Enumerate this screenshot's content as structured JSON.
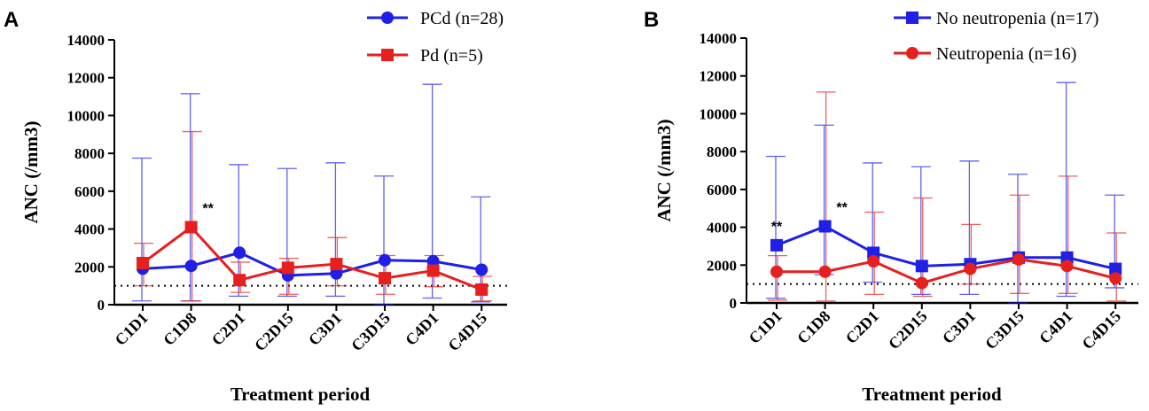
{
  "chart_data": [
    {
      "panel_label": "A",
      "type": "line",
      "xlabel": "Treatment period",
      "ylabel": "ANC (/mm3)",
      "ylim": [
        0,
        14000
      ],
      "yticks": [
        0,
        2000,
        4000,
        6000,
        8000,
        10000,
        12000,
        14000
      ],
      "categories": [
        "C1D1",
        "C1D8",
        "C2D1",
        "C2D15",
        "C3D1",
        "C3D15",
        "C4D1",
        "C4D15"
      ],
      "reference_line": 1000,
      "legend_position": "top-right",
      "series": [
        {
          "name": "PCd (n=28)",
          "color": "#1f1fe6",
          "marker": "circle",
          "values": [
            1900,
            2050,
            2750,
            1550,
            1650,
            2350,
            2300,
            1850
          ],
          "error_high": [
            7750,
            11150,
            7400,
            7200,
            7500,
            6800,
            11650,
            5700
          ],
          "error_low": [
            200,
            200,
            450,
            450,
            450,
            0,
            350,
            150
          ]
        },
        {
          "name": "Pd (n=5)",
          "color": "#e61f1f",
          "marker": "square",
          "values": [
            2200,
            4100,
            1300,
            1950,
            2150,
            1400,
            1800,
            800
          ],
          "error_high": [
            3250,
            9150,
            2250,
            2450,
            3550,
            2600,
            2600,
            1500
          ],
          "error_low": [
            1000,
            200,
            650,
            550,
            1000,
            550,
            950,
            200
          ]
        }
      ],
      "annotations": [
        {
          "text": "**",
          "category": "C1D8"
        }
      ]
    },
    {
      "panel_label": "B",
      "type": "line",
      "xlabel": "Treatment period",
      "ylabel": "ANC (/mm3)",
      "ylim": [
        0,
        14000
      ],
      "yticks": [
        0,
        2000,
        4000,
        6000,
        8000,
        10000,
        12000,
        14000
      ],
      "categories": [
        "C1D1",
        "C1D8",
        "C2D1",
        "C2D15",
        "C3D1",
        "C3D15",
        "C4D1",
        "C4D15"
      ],
      "reference_line": 1000,
      "legend_position": "top-right",
      "series": [
        {
          "name": "No neutropenia (n=17)",
          "color": "#1f1fe6",
          "marker": "square",
          "values": [
            3050,
            4050,
            2650,
            1950,
            2050,
            2400,
            2400,
            1800
          ],
          "error_high": [
            7750,
            9400,
            7400,
            7200,
            7500,
            6800,
            11650,
            5700
          ],
          "error_low": [
            250,
            1500,
            1100,
            450,
            450,
            0,
            350,
            800
          ]
        },
        {
          "name": "Neutropenia (n=16)",
          "color": "#e61f1f",
          "marker": "circle",
          "values": [
            1650,
            1650,
            2200,
            1050,
            1800,
            2300,
            1950,
            1300
          ],
          "error_high": [
            2500,
            11150,
            4800,
            5550,
            4150,
            5700,
            6700,
            3700
          ],
          "error_low": [
            150,
            100,
            450,
            350,
            1000,
            500,
            500,
            100
          ]
        }
      ],
      "annotations": [
        {
          "text": "**",
          "category": "C1D1"
        },
        {
          "text": "**",
          "category": "C1D8"
        }
      ]
    }
  ]
}
